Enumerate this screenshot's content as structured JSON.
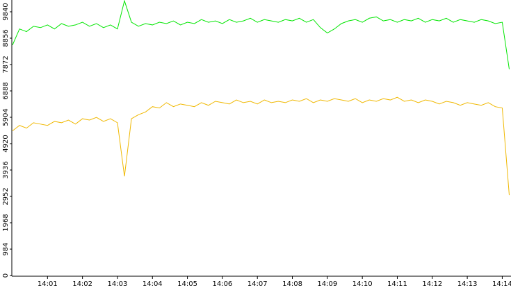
{
  "chart_data": {
    "type": "line",
    "x": [
      840,
      840.2,
      840.4,
      840.6,
      840.8,
      841,
      841.2,
      841.4,
      841.6,
      841.8,
      842,
      842.2,
      842.4,
      842.6,
      842.8,
      843,
      843.2,
      843.4,
      843.6,
      843.8,
      844,
      844.2,
      844.4,
      844.6,
      844.8,
      845,
      845.2,
      845.4,
      845.6,
      845.8,
      846,
      846.2,
      846.4,
      846.6,
      846.8,
      847,
      847.2,
      847.4,
      847.6,
      847.8,
      848,
      848.2,
      848.4,
      848.6,
      848.8,
      849,
      849.2,
      849.4,
      849.6,
      849.8,
      850,
      850.2,
      850.4,
      850.6,
      850.8,
      851,
      851.2,
      851.4,
      851.6,
      851.8,
      852,
      852.2,
      852.4,
      852.6,
      852.8,
      853,
      853.2,
      853.4,
      853.6,
      853.8,
      854,
      854.2
    ],
    "series": [
      {
        "color": "#00e600",
        "values": [
          8600,
          9200,
          9100,
          9300,
          9250,
          9350,
          9200,
          9400,
          9300,
          9350,
          9450,
          9300,
          9400,
          9250,
          9350,
          9200,
          10250,
          9450,
          9300,
          9400,
          9350,
          9450,
          9400,
          9500,
          9350,
          9450,
          9400,
          9550,
          9450,
          9500,
          9400,
          9550,
          9450,
          9500,
          9600,
          9450,
          9550,
          9500,
          9450,
          9550,
          9500,
          9600,
          9450,
          9550,
          9250,
          9050,
          9200,
          9400,
          9500,
          9550,
          9450,
          9600,
          9650,
          9500,
          9550,
          9450,
          9550,
          9500,
          9600,
          9450,
          9550,
          9500,
          9600,
          9450,
          9550,
          9500,
          9450,
          9550,
          9500,
          9400,
          9450,
          7700
        ]
      },
      {
        "color": "#f0b800",
        "values": [
          5400,
          5600,
          5500,
          5700,
          5650,
          5600,
          5750,
          5700,
          5800,
          5650,
          5850,
          5800,
          5900,
          5750,
          5850,
          5700,
          3700,
          5850,
          6000,
          6100,
          6300,
          6250,
          6450,
          6300,
          6400,
          6350,
          6300,
          6450,
          6350,
          6500,
          6450,
          6400,
          6550,
          6450,
          6500,
          6400,
          6550,
          6450,
          6500,
          6450,
          6550,
          6500,
          6600,
          6450,
          6550,
          6500,
          6600,
          6550,
          6500,
          6600,
          6450,
          6550,
          6500,
          6600,
          6550,
          6650,
          6500,
          6550,
          6450,
          6550,
          6500,
          6400,
          6500,
          6450,
          6350,
          6450,
          6400,
          6350,
          6450,
          6300,
          6250,
          3000
        ]
      }
    ],
    "xlim": [
      840,
      854.25
    ],
    "xticks": [
      {
        "value": 841,
        "label": "14:01"
      },
      {
        "value": 842,
        "label": "14:02"
      },
      {
        "value": 843,
        "label": "14:03"
      },
      {
        "value": 844,
        "label": "14:04"
      },
      {
        "value": 845,
        "label": "14:05"
      },
      {
        "value": 846,
        "label": "14:06"
      },
      {
        "value": 847,
        "label": "14:07"
      },
      {
        "value": 848,
        "label": "14:08"
      },
      {
        "value": 849,
        "label": "14:09"
      },
      {
        "value": 850,
        "label": "14:10"
      },
      {
        "value": 851,
        "label": "14:11"
      },
      {
        "value": 852,
        "label": "14:12"
      },
      {
        "value": 853,
        "label": "14:13"
      },
      {
        "value": 854,
        "label": "14:14"
      }
    ],
    "ylim": [
      0,
      9840
    ],
    "yticks": [
      0,
      984,
      1968,
      2952,
      3936,
      4920,
      5904,
      6888,
      7872,
      8856,
      9840
    ]
  }
}
